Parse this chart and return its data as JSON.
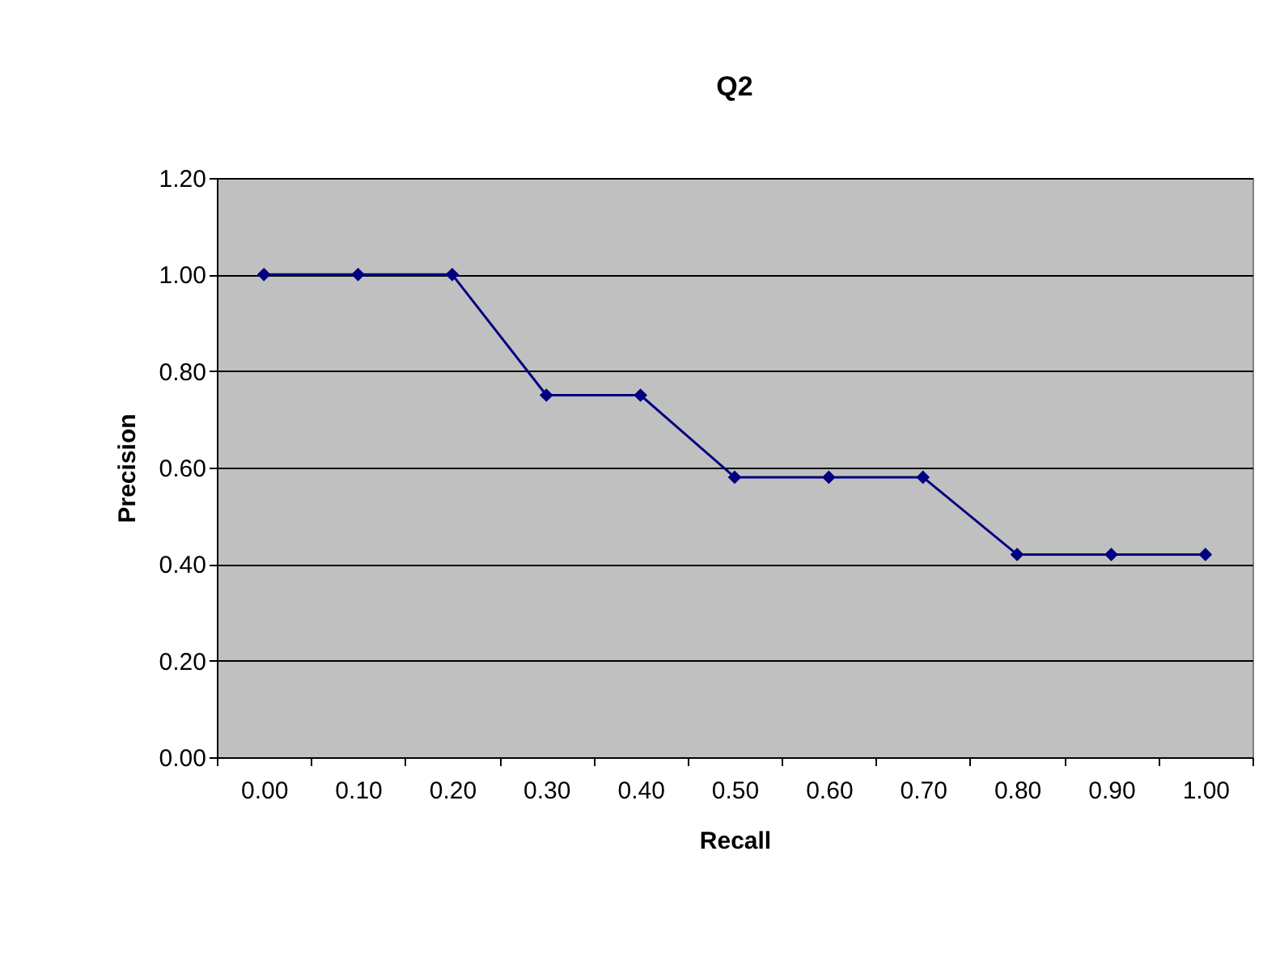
{
  "chart_data": {
    "type": "line",
    "title": "Q2",
    "xlabel": "Recall",
    "ylabel": "Precision",
    "categories": [
      "0.00",
      "0.10",
      "0.20",
      "0.30",
      "0.40",
      "0.50",
      "0.60",
      "0.70",
      "0.80",
      "0.90",
      "1.00"
    ],
    "series": [
      {
        "color": "#000080",
        "values": [
          1.0,
          1.0,
          1.0,
          0.75,
          0.75,
          0.58,
          0.58,
          0.58,
          0.42,
          0.42,
          0.42
        ]
      }
    ],
    "ylim": [
      0,
      1.2
    ],
    "yticks": [
      {
        "value": 0,
        "label": "0.00"
      },
      {
        "value": 0.2,
        "label": "0.20"
      },
      {
        "value": 0.4,
        "label": "0.40"
      },
      {
        "value": 0.6,
        "label": "0.60"
      },
      {
        "value": 0.8,
        "label": "0.80"
      },
      {
        "value": 1.0,
        "label": "1.00"
      },
      {
        "value": 1.2,
        "label": "1.20"
      }
    ],
    "grid": "y",
    "marker": "diamond",
    "line_style": "solid"
  }
}
